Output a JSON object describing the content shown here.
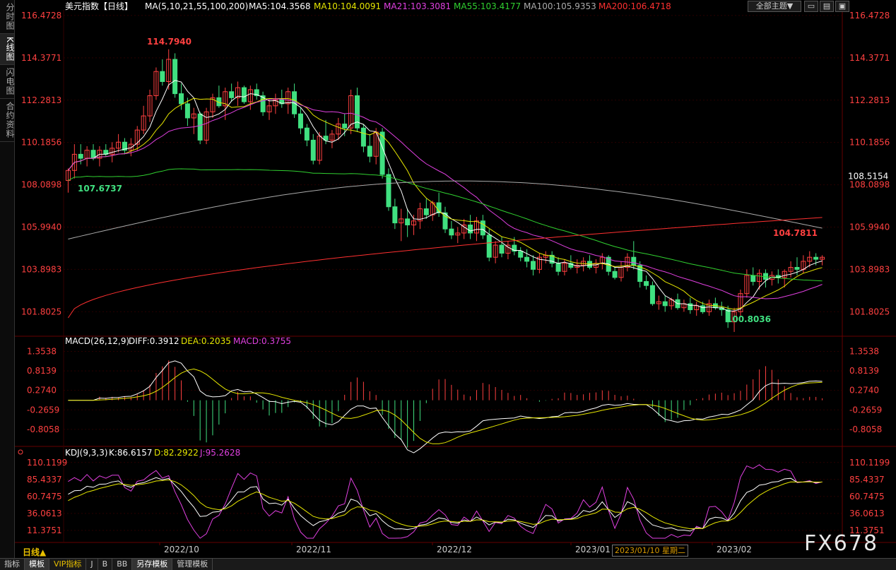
{
  "sidebar": {
    "tabs": [
      "分时图",
      "K线图",
      "闪电图",
      "合约资料"
    ]
  },
  "header": {
    "symbol": "美元指数【日线】",
    "ma_label": "MA(5,10,21,55,100,200)",
    "ma_values": [
      {
        "text": "MA5:104.3568",
        "color": "#ffffff"
      },
      {
        "text": "MA10:104.0091",
        "color": "#e6e600"
      },
      {
        "text": "MA21:103.3081",
        "color": "#e040e0"
      },
      {
        "text": "MA55:103.4177",
        "color": "#30d030"
      },
      {
        "text": "MA100:105.9353",
        "color": "#aaaaaa"
      },
      {
        "text": "MA200:106.4718",
        "color": "#ff3030"
      }
    ],
    "theme_button": "全部主题▼",
    "tools": [
      "▭",
      "▤",
      "▣"
    ]
  },
  "macd_header": {
    "label": "MACD(26,12,9)",
    "diff": "DIFF:0.3912",
    "dea": "DEA:0.2035",
    "macd": "MACD:0.3755"
  },
  "kdj_header": {
    "label": "KDJ(9,3,3)",
    "k": "K:86.6157",
    "d": "D:82.2922",
    "j": "J:95.2628"
  },
  "axes": {
    "price_ticks": [
      "116.4728",
      "114.3771",
      "112.2813",
      "110.1856",
      "108.0898",
      "105.9940",
      "103.8983",
      "101.8025"
    ],
    "price_current": "108.5154",
    "macd_ticks": [
      "1.3538",
      "0.8139",
      "0.2740",
      "-0.2659",
      "-0.8058"
    ],
    "kdj_ticks": [
      "110.1199",
      "85.4337",
      "60.7475",
      "36.0613",
      "11.3751"
    ],
    "dates": [
      "2022/10",
      "2022/11",
      "2022/12",
      "2023/01",
      "2023/02"
    ]
  },
  "annotations": {
    "high": "114.7940",
    "low1": "107.6737",
    "low2": "100.8036",
    "recent_high": "104.7811"
  },
  "cursor_date": "2023/01/10 星期二",
  "day_line": "日线▲",
  "watermark": "FX678",
  "bottom_tabs": [
    "指标",
    "模板",
    "VIP指标",
    "J",
    "B",
    "BB",
    "另存模板",
    "管理模板"
  ],
  "colors": {
    "up": "#ff4040",
    "down": "#40e080",
    "bg": "#000000",
    "grid": "#330000"
  },
  "chart_data": {
    "type": "candlestick",
    "price_range": [
      100.8,
      116.47
    ],
    "candles": [
      [
        108.3,
        108.9,
        107.7,
        108.8
      ],
      [
        108.8,
        110.1,
        108.4,
        109.6
      ],
      [
        109.6,
        110.1,
        109.1,
        109.4
      ],
      [
        109.4,
        110.0,
        109.0,
        109.8
      ],
      [
        109.8,
        110.1,
        109.3,
        109.4
      ],
      [
        109.4,
        110.0,
        109.0,
        109.8
      ],
      [
        109.8,
        110.1,
        109.5,
        109.6
      ],
      [
        109.6,
        110.2,
        109.2,
        109.9
      ],
      [
        109.9,
        110.6,
        109.7,
        110.2
      ],
      [
        110.2,
        110.4,
        109.6,
        109.8
      ],
      [
        109.8,
        110.4,
        109.5,
        110.1
      ],
      [
        110.1,
        111.0,
        109.8,
        110.8
      ],
      [
        110.8,
        112.0,
        110.6,
        111.5
      ],
      [
        111.5,
        112.8,
        111.2,
        112.5
      ],
      [
        112.5,
        113.9,
        112.3,
        113.7
      ],
      [
        113.7,
        114.3,
        113.0,
        113.2
      ],
      [
        113.2,
        114.8,
        112.8,
        114.3
      ],
      [
        114.3,
        114.6,
        112.4,
        112.6
      ],
      [
        112.6,
        113.1,
        111.8,
        112.1
      ],
      [
        112.1,
        112.4,
        111.0,
        111.4
      ],
      [
        111.4,
        111.9,
        110.6,
        111.6
      ],
      [
        111.6,
        111.7,
        110.1,
        110.3
      ],
      [
        110.3,
        111.9,
        110.1,
        111.7
      ],
      [
        111.7,
        112.6,
        111.4,
        112.4
      ],
      [
        112.4,
        113.0,
        111.9,
        112.0
      ],
      [
        112.0,
        112.9,
        111.3,
        112.7
      ],
      [
        112.7,
        113.1,
        112.2,
        112.4
      ],
      [
        112.4,
        113.2,
        112.0,
        112.9
      ],
      [
        112.9,
        113.0,
        112.1,
        112.2
      ],
      [
        112.2,
        113.0,
        111.8,
        112.8
      ],
      [
        112.8,
        113.1,
        112.3,
        112.5
      ],
      [
        112.5,
        112.7,
        111.5,
        111.7
      ],
      [
        111.7,
        112.3,
        111.3,
        112.0
      ],
      [
        112.0,
        112.6,
        111.6,
        112.3
      ],
      [
        112.3,
        112.8,
        111.9,
        112.1
      ],
      [
        112.1,
        112.9,
        111.6,
        112.7
      ],
      [
        112.7,
        113.1,
        111.4,
        111.6
      ],
      [
        111.6,
        111.9,
        110.6,
        110.9
      ],
      [
        110.9,
        111.1,
        110.0,
        110.3
      ],
      [
        110.3,
        110.6,
        109.1,
        109.3
      ],
      [
        109.3,
        110.7,
        109.1,
        110.5
      ],
      [
        110.5,
        111.3,
        110.1,
        110.3
      ],
      [
        110.3,
        110.8,
        109.9,
        110.6
      ],
      [
        110.6,
        111.4,
        110.3,
        111.1
      ],
      [
        111.1,
        111.6,
        110.5,
        110.9
      ],
      [
        110.9,
        112.8,
        110.6,
        112.5
      ],
      [
        112.5,
        112.9,
        110.7,
        110.9
      ],
      [
        110.9,
        111.1,
        109.7,
        110.0
      ],
      [
        110.0,
        110.6,
        109.2,
        109.5
      ],
      [
        109.5,
        110.9,
        109.1,
        110.7
      ],
      [
        110.7,
        110.9,
        108.4,
        108.6
      ],
      [
        108.6,
        108.9,
        106.8,
        107.0
      ],
      [
        107.0,
        107.4,
        105.9,
        106.2
      ],
      [
        106.2,
        106.9,
        105.3,
        106.4
      ],
      [
        106.4,
        106.9,
        105.5,
        106.1
      ],
      [
        106.1,
        106.6,
        105.6,
        106.3
      ],
      [
        106.3,
        107.2,
        105.9,
        106.9
      ],
      [
        106.9,
        107.4,
        106.4,
        106.6
      ],
      [
        106.6,
        107.3,
        106.3,
        107.2
      ],
      [
        107.2,
        107.7,
        106.5,
        106.7
      ],
      [
        106.7,
        107.0,
        105.7,
        105.9
      ],
      [
        105.9,
        106.3,
        105.4,
        105.6
      ],
      [
        105.6,
        106.0,
        105.2,
        105.7
      ],
      [
        105.7,
        106.4,
        105.4,
        106.1
      ],
      [
        106.1,
        106.6,
        105.4,
        105.7
      ],
      [
        105.7,
        106.5,
        105.3,
        106.3
      ],
      [
        106.3,
        106.6,
        105.4,
        105.6
      ],
      [
        105.6,
        105.9,
        104.3,
        104.5
      ],
      [
        104.5,
        105.3,
        104.2,
        105.1
      ],
      [
        105.1,
        105.5,
        104.5,
        104.7
      ],
      [
        104.7,
        105.3,
        104.4,
        105.1
      ],
      [
        105.1,
        105.5,
        104.6,
        104.8
      ],
      [
        104.8,
        105.0,
        104.3,
        104.5
      ],
      [
        104.5,
        104.9,
        104.0,
        104.3
      ],
      [
        104.3,
        104.6,
        103.6,
        103.9
      ],
      [
        103.9,
        104.7,
        103.7,
        104.5
      ],
      [
        104.5,
        104.8,
        104.2,
        104.6
      ],
      [
        104.6,
        104.8,
        104.0,
        104.2
      ],
      [
        104.2,
        104.5,
        103.6,
        103.8
      ],
      [
        103.8,
        104.4,
        103.6,
        104.2
      ],
      [
        104.2,
        104.6,
        103.9,
        104.0
      ],
      [
        104.0,
        104.4,
        103.7,
        104.1
      ],
      [
        104.1,
        104.5,
        103.8,
        104.3
      ],
      [
        104.3,
        104.6,
        103.9,
        104.0
      ],
      [
        104.0,
        104.4,
        103.7,
        104.2
      ],
      [
        104.2,
        104.7,
        103.9,
        104.5
      ],
      [
        104.5,
        104.6,
        103.6,
        103.8
      ],
      [
        103.8,
        104.0,
        103.4,
        103.5
      ],
      [
        103.5,
        104.3,
        103.3,
        104.0
      ],
      [
        104.0,
        104.7,
        103.8,
        104.5
      ],
      [
        104.5,
        105.3,
        103.9,
        104.1
      ],
      [
        104.1,
        104.3,
        103.0,
        103.3
      ],
      [
        103.3,
        103.6,
        102.9,
        103.1
      ],
      [
        103.1,
        103.3,
        102.1,
        102.2
      ],
      [
        102.2,
        102.6,
        101.9,
        102.3
      ],
      [
        102.3,
        102.6,
        101.8,
        102.1
      ],
      [
        102.1,
        102.5,
        101.9,
        102.4
      ],
      [
        102.4,
        102.7,
        101.9,
        102.0
      ],
      [
        102.0,
        102.4,
        101.8,
        102.2
      ],
      [
        102.2,
        102.5,
        101.7,
        101.9
      ],
      [
        101.9,
        102.3,
        101.6,
        102.1
      ],
      [
        102.1,
        102.3,
        101.7,
        101.8
      ],
      [
        101.8,
        102.4,
        101.6,
        102.2
      ],
      [
        102.2,
        102.5,
        101.9,
        102.0
      ],
      [
        102.0,
        102.3,
        101.6,
        101.9
      ],
      [
        101.9,
        102.1,
        101.0,
        101.3
      ],
      [
        101.3,
        102.0,
        100.8,
        101.8
      ],
      [
        101.8,
        102.9,
        101.6,
        102.7
      ],
      [
        102.7,
        103.9,
        102.5,
        103.6
      ],
      [
        103.6,
        104.0,
        103.1,
        103.3
      ],
      [
        103.3,
        103.9,
        102.9,
        103.7
      ],
      [
        103.7,
        103.9,
        103.0,
        103.4
      ],
      [
        103.4,
        103.8,
        103.1,
        103.6
      ],
      [
        103.6,
        103.9,
        103.2,
        103.5
      ],
      [
        103.5,
        103.9,
        103.0,
        103.8
      ],
      [
        103.8,
        104.3,
        103.5,
        104.0
      ],
      [
        104.0,
        104.5,
        103.6,
        103.9
      ],
      [
        103.9,
        104.6,
        103.7,
        104.3
      ],
      [
        104.3,
        104.8,
        104.0,
        104.5
      ],
      [
        104.5,
        104.7,
        104.1,
        104.4
      ],
      [
        104.4,
        104.6,
        104.1,
        104.5
      ]
    ],
    "ma_series": [
      {
        "name": "MA5",
        "color": "#ffffff",
        "start": 109.0,
        "end": 104.36
      },
      {
        "name": "MA10",
        "color": "#e6e600",
        "start": 109.3,
        "end": 104.0
      },
      {
        "name": "MA21",
        "color": "#e040e0",
        "start": 109.6,
        "end": 103.3
      },
      {
        "name": "MA55",
        "color": "#30d030",
        "start": 107.9,
        "end": 103.42
      },
      {
        "name": "MA100",
        "color": "#aaaaaa",
        "start": 105.4,
        "end": 105.94
      },
      {
        "name": "MA200",
        "color": "#ff3030",
        "start": 101.5,
        "end": 106.47
      }
    ],
    "macd_range": [
      -1.2,
      1.5
    ],
    "kdj_range": [
      0,
      115
    ]
  }
}
